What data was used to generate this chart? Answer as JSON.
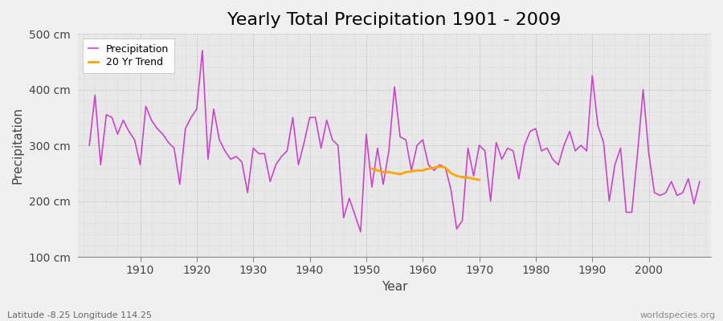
{
  "title": "Yearly Total Precipitation 1901 - 2009",
  "xlabel": "Year",
  "ylabel": "Precipitation",
  "subtitle": "Latitude -8.25 Longitude 114.25",
  "watermark": "worldspecies.org",
  "bg_color": "#f0f0f0",
  "plot_bg_color": "#e8e8e8",
  "precip_color": "#cc44cc",
  "trend_color": "#FFA500",
  "years": [
    1901,
    1902,
    1903,
    1904,
    1905,
    1906,
    1907,
    1908,
    1909,
    1910,
    1911,
    1912,
    1913,
    1914,
    1915,
    1916,
    1917,
    1918,
    1919,
    1920,
    1921,
    1922,
    1923,
    1924,
    1925,
    1926,
    1927,
    1928,
    1929,
    1930,
    1931,
    1932,
    1933,
    1934,
    1935,
    1936,
    1937,
    1938,
    1939,
    1940,
    1941,
    1942,
    1943,
    1944,
    1945,
    1946,
    1947,
    1948,
    1949,
    1950,
    1951,
    1952,
    1953,
    1954,
    1955,
    1956,
    1957,
    1958,
    1959,
    1960,
    1961,
    1962,
    1963,
    1964,
    1965,
    1966,
    1967,
    1968,
    1969,
    1970,
    1971,
    1972,
    1973,
    1974,
    1975,
    1976,
    1977,
    1978,
    1979,
    1980,
    1981,
    1982,
    1983,
    1984,
    1985,
    1986,
    1987,
    1988,
    1989,
    1990,
    1991,
    1992,
    1993,
    1994,
    1995,
    1996,
    1997,
    1998,
    1999,
    2000,
    2001,
    2002,
    2003,
    2004,
    2005,
    2006,
    2007,
    2008,
    2009
  ],
  "precip": [
    300,
    390,
    265,
    355,
    350,
    320,
    345,
    325,
    310,
    265,
    370,
    345,
    330,
    320,
    305,
    295,
    230,
    330,
    350,
    365,
    470,
    275,
    365,
    310,
    290,
    275,
    280,
    270,
    215,
    295,
    285,
    285,
    235,
    265,
    280,
    290,
    350,
    265,
    305,
    350,
    350,
    295,
    345,
    310,
    300,
    170,
    205,
    175,
    145,
    320,
    225,
    295,
    230,
    290,
    405,
    315,
    310,
    255,
    300,
    310,
    265,
    255,
    265,
    260,
    220,
    150,
    165,
    295,
    245,
    300,
    290,
    200,
    305,
    275,
    295,
    290,
    240,
    300,
    325,
    330,
    290,
    295,
    275,
    265,
    300,
    325,
    290,
    300,
    290,
    425,
    335,
    305,
    200,
    265,
    295,
    180,
    180,
    285,
    400,
    285,
    215,
    210,
    215,
    235,
    210,
    215,
    240,
    195,
    235
  ],
  "trend_years": [
    1951,
    1952,
    1953,
    1954,
    1955,
    1956,
    1957,
    1958,
    1959,
    1960,
    1961,
    1962,
    1963,
    1964,
    1965,
    1966,
    1967,
    1968,
    1969,
    1970
  ],
  "trend_values": [
    258,
    255,
    252,
    252,
    250,
    248,
    252,
    253,
    255,
    255,
    258,
    260,
    262,
    260,
    250,
    245,
    243,
    242,
    240,
    238
  ],
  "ylim": [
    100,
    500
  ],
  "yticks": [
    100,
    200,
    300,
    400,
    500
  ],
  "ytick_labels": [
    "100 cm",
    "200 cm",
    "300 cm",
    "400 cm",
    "500 cm"
  ],
  "xlim": [
    1899,
    2011
  ],
  "xticks": [
    1910,
    1920,
    1930,
    1940,
    1950,
    1960,
    1970,
    1980,
    1990,
    2000
  ],
  "legend_labels": [
    "Precipitation",
    "20 Yr Trend"
  ],
  "title_fontsize": 16,
  "label_fontsize": 11,
  "tick_fontsize": 10
}
